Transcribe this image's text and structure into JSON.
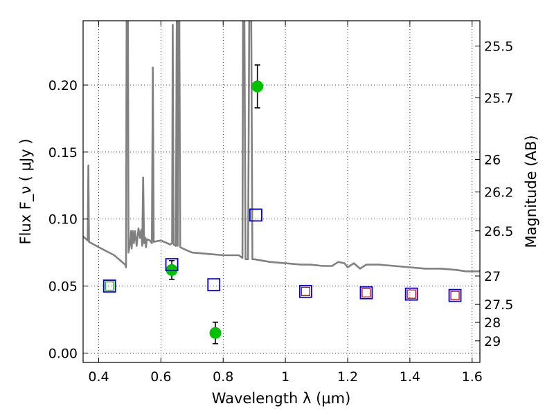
{
  "chart_data": {
    "type": "scatter",
    "xlabel": "Wavelength  λ (μm)",
    "ylabel": "Flux  F_ν ( μJy )",
    "y2label": "Magnitude (AB)",
    "xlim": [
      0.35,
      1.625
    ],
    "ylim": [
      -0.007,
      0.248
    ],
    "grid": true,
    "x_ticks": [
      0.4,
      0.6,
      0.8,
      1.0,
      1.2,
      1.4,
      1.6
    ],
    "x_tick_labels": [
      "0.4",
      "0.6",
      "0.8",
      "1",
      "1.2",
      "1.4",
      "1.6"
    ],
    "y_ticks": [
      0.0,
      0.05,
      0.1,
      0.15,
      0.2
    ],
    "y_tick_labels": [
      "0.00",
      "0.05",
      "0.10",
      "0.15",
      "0.20"
    ],
    "mag_ticks": [
      {
        "label": "25.5",
        "flux": 0.2291
      },
      {
        "label": "25.7",
        "flux": 0.1905
      },
      {
        "label": "26",
        "flux": 0.1445
      },
      {
        "label": "26.2",
        "flux": 0.1202
      },
      {
        "label": "26.5",
        "flux": 0.0912
      },
      {
        "label": "27",
        "flux": 0.0575
      },
      {
        "label": "27.5",
        "flux": 0.0363
      },
      {
        "label": "28",
        "flux": 0.0229
      },
      {
        "label": "29",
        "flux": 0.0091
      }
    ],
    "model_spectrum": {
      "color": "#808080",
      "points": [
        [
          0.35,
          0.087
        ],
        [
          0.365,
          0.084
        ],
        [
          0.367,
          0.14
        ],
        [
          0.369,
          0.083
        ],
        [
          0.4,
          0.079
        ],
        [
          0.45,
          0.073
        ],
        [
          0.485,
          0.066
        ],
        [
          0.488,
          0.064
        ],
        [
          0.49,
          0.26
        ],
        [
          0.494,
          0.26
        ],
        [
          0.496,
          0.075
        ],
        [
          0.502,
          0.084
        ],
        [
          0.504,
          0.091
        ],
        [
          0.506,
          0.078
        ],
        [
          0.51,
          0.091
        ],
        [
          0.513,
          0.082
        ],
        [
          0.517,
          0.091
        ],
        [
          0.522,
          0.08
        ],
        [
          0.528,
          0.093
        ],
        [
          0.533,
          0.086
        ],
        [
          0.537,
          0.092
        ],
        [
          0.54,
          0.08
        ],
        [
          0.543,
          0.131
        ],
        [
          0.546,
          0.082
        ],
        [
          0.55,
          0.086
        ],
        [
          0.552,
          0.079
        ],
        [
          0.555,
          0.085
        ],
        [
          0.565,
          0.084
        ],
        [
          0.571,
          0.082
        ],
        [
          0.574,
          0.213
        ],
        [
          0.577,
          0.083
        ],
        [
          0.6,
          0.084
        ],
        [
          0.63,
          0.081
        ],
        [
          0.636,
          0.082
        ],
        [
          0.638,
          0.245
        ],
        [
          0.641,
          0.081
        ],
        [
          0.648,
          0.08
        ],
        [
          0.651,
          0.26
        ],
        [
          0.654,
          0.08
        ],
        [
          0.656,
          0.26
        ],
        [
          0.659,
          0.26
        ],
        [
          0.662,
          0.079
        ],
        [
          0.68,
          0.077
        ],
        [
          0.7,
          0.075
        ],
        [
          0.75,
          0.074
        ],
        [
          0.8,
          0.073
        ],
        [
          0.85,
          0.073
        ],
        [
          0.862,
          0.071
        ],
        [
          0.864,
          0.26
        ],
        [
          0.868,
          0.26
        ],
        [
          0.872,
          0.07
        ],
        [
          0.88,
          0.07
        ],
        [
          0.884,
          0.26
        ],
        [
          0.89,
          0.26
        ],
        [
          0.894,
          0.07
        ],
        [
          0.9,
          0.07
        ],
        [
          0.95,
          0.068
        ],
        [
          1.0,
          0.067
        ],
        [
          1.05,
          0.066
        ],
        [
          1.08,
          0.066
        ],
        [
          1.12,
          0.065
        ],
        [
          1.15,
          0.065
        ],
        [
          1.17,
          0.068
        ],
        [
          1.19,
          0.067
        ],
        [
          1.2,
          0.064
        ],
        [
          1.22,
          0.067
        ],
        [
          1.24,
          0.063
        ],
        [
          1.26,
          0.066
        ],
        [
          1.3,
          0.066
        ],
        [
          1.35,
          0.065
        ],
        [
          1.4,
          0.064
        ],
        [
          1.45,
          0.063
        ],
        [
          1.5,
          0.063
        ],
        [
          1.55,
          0.062
        ],
        [
          1.58,
          0.061
        ],
        [
          1.625,
          0.061
        ]
      ]
    },
    "series": [
      {
        "marker": "filled-circle",
        "color": "#00c000",
        "points": [
          {
            "x": 0.635,
            "y": 0.062,
            "err": 0.007
          },
          {
            "x": 0.775,
            "y": 0.015,
            "err": 0.008
          },
          {
            "x": 0.91,
            "y": 0.199,
            "err": 0.016
          }
        ]
      },
      {
        "marker": "open-square",
        "color": "#0000dd",
        "points": [
          {
            "x": 0.435,
            "y": 0.05
          },
          {
            "x": 0.635,
            "y": 0.066
          },
          {
            "x": 0.77,
            "y": 0.051
          },
          {
            "x": 0.905,
            "y": 0.103
          },
          {
            "x": 1.065,
            "y": 0.046
          },
          {
            "x": 1.26,
            "y": 0.045
          },
          {
            "x": 1.405,
            "y": 0.044
          },
          {
            "x": 1.545,
            "y": 0.043
          }
        ]
      },
      {
        "marker": "small-open-square",
        "color": "#dd0000",
        "points": [
          {
            "x": 1.065,
            "y": 0.046
          },
          {
            "x": 1.26,
            "y": 0.045
          },
          {
            "x": 1.405,
            "y": 0.044
          },
          {
            "x": 1.545,
            "y": 0.043
          }
        ]
      },
      {
        "marker": "small-open-square",
        "color": "#00aa00",
        "points": [
          {
            "x": 0.435,
            "y": 0.05
          }
        ]
      }
    ]
  }
}
